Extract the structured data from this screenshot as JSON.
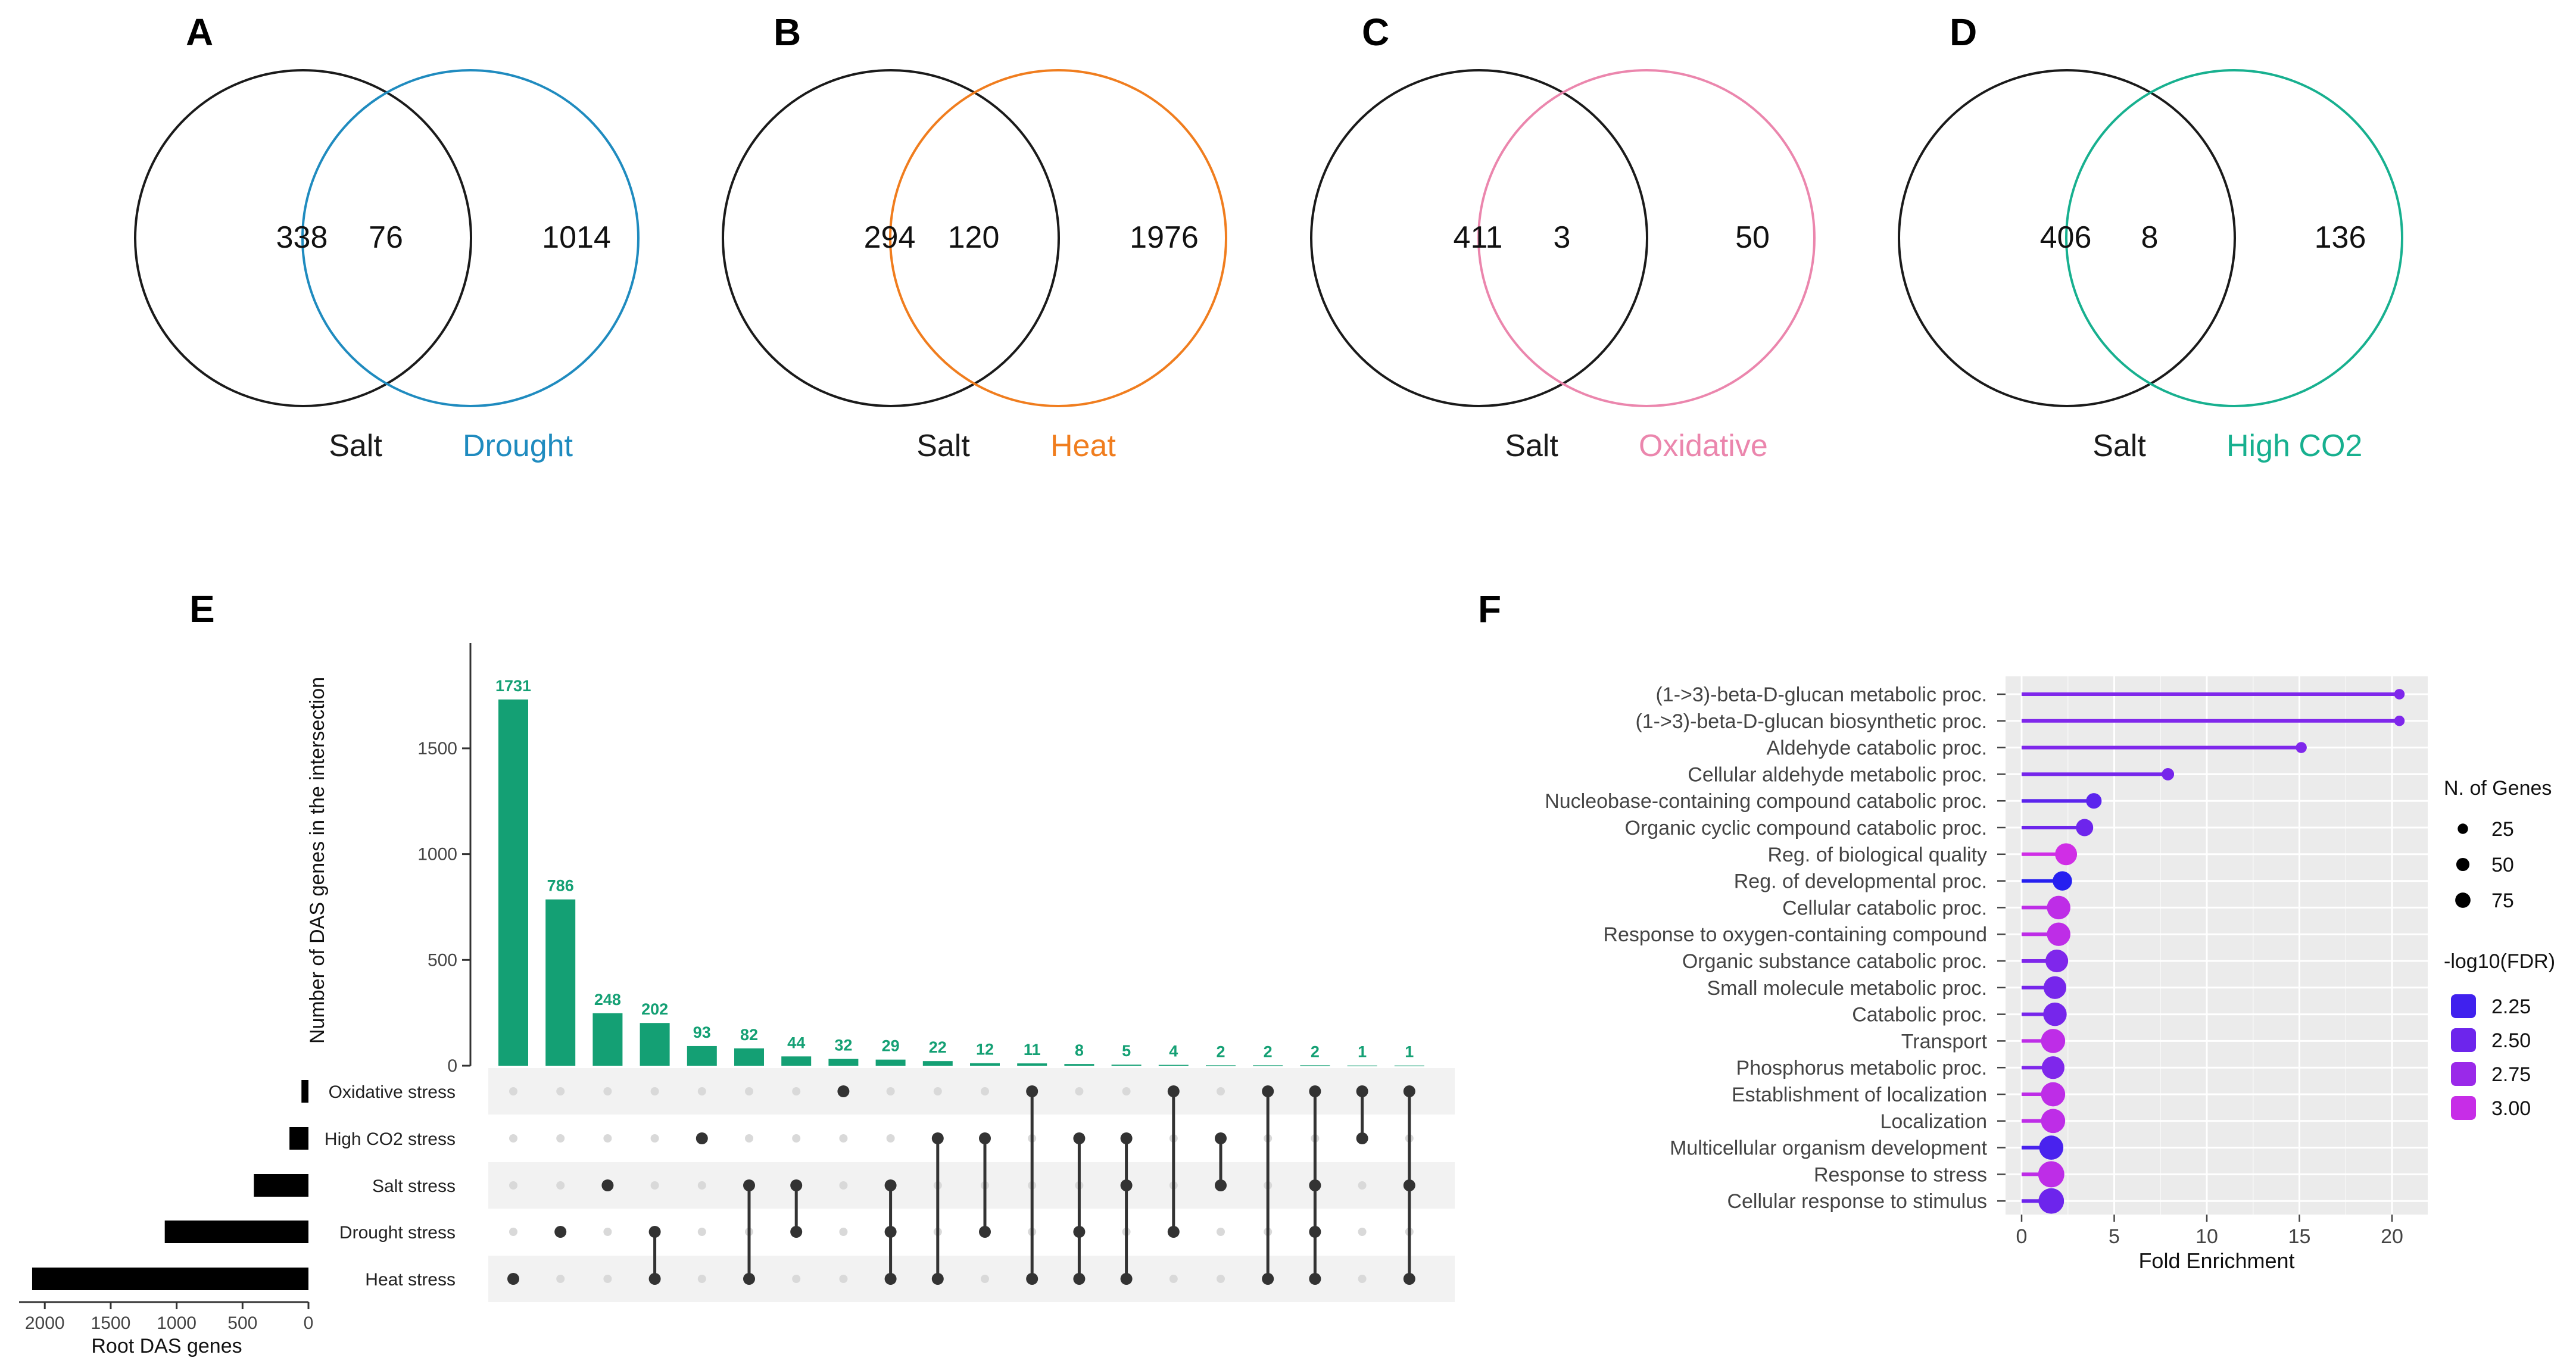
{
  "venns": [
    {
      "panel": "A",
      "left_label": "Salt",
      "right_label": "Drought",
      "left_only": "338",
      "overlap": "76",
      "right_only": "1014",
      "left_color": "#1a1a1a",
      "right_color": "#1f8bbf"
    },
    {
      "panel": "B",
      "left_label": "Salt",
      "right_label": "Heat",
      "left_only": "294",
      "overlap": "120",
      "right_only": "1976",
      "left_color": "#1a1a1a",
      "right_color": "#f07d1e"
    },
    {
      "panel": "C",
      "left_label": "Salt",
      "right_label": "Oxidative",
      "left_only": "411",
      "overlap": "3",
      "right_only": "50",
      "left_color": "#1a1a1a",
      "right_color": "#eb86ad"
    },
    {
      "panel": "D",
      "left_label": "Salt",
      "right_label": "High CO2",
      "left_only": "406",
      "overlap": "8",
      "right_only": "136",
      "left_color": "#1a1a1a",
      "right_color": "#17b08f"
    }
  ],
  "upset": {
    "panel": "E",
    "ylabel": "Number of DAS genes in the intersection",
    "yticks": [
      "0",
      "500",
      "1000",
      "1500"
    ],
    "ymax": 1950,
    "bar_color": "#14a074",
    "label_color": "#14a074",
    "set_bar_color": "#000000",
    "matrix_dot_color": "#333333",
    "empty_dot_color": "#d9d9d9",
    "sets": [
      "Oxidative stress",
      "High CO2 stress",
      "Salt stress",
      "Drought stress",
      "Heat stress"
    ],
    "set_sizes": [
      53,
      144,
      414,
      1090,
      2096
    ],
    "set_axis_label": "Root DAS genes",
    "set_axis_ticks": [
      "2000",
      "1500",
      "1000",
      "500",
      "0"
    ],
    "set_axis_tick_values": [
      2000,
      1500,
      1000,
      500,
      0
    ],
    "set_axis_max": 2150,
    "intersections": [
      {
        "value": 1731,
        "label": "1731",
        "sets": [
          4
        ]
      },
      {
        "value": 786,
        "label": "786",
        "sets": [
          3
        ]
      },
      {
        "value": 248,
        "label": "248",
        "sets": [
          2
        ]
      },
      {
        "value": 202,
        "label": "202",
        "sets": [
          3,
          4
        ]
      },
      {
        "value": 93,
        "label": "93",
        "sets": [
          1
        ]
      },
      {
        "value": 82,
        "label": "82",
        "sets": [
          2,
          4
        ]
      },
      {
        "value": 44,
        "label": "44",
        "sets": [
          2,
          3
        ]
      },
      {
        "value": 32,
        "label": "32",
        "sets": [
          0
        ]
      },
      {
        "value": 29,
        "label": "29",
        "sets": [
          2,
          3,
          4
        ]
      },
      {
        "value": 22,
        "label": "22",
        "sets": [
          1,
          4
        ]
      },
      {
        "value": 12,
        "label": "12",
        "sets": [
          1,
          3
        ]
      },
      {
        "value": 11,
        "label": "11",
        "sets": [
          0,
          4
        ]
      },
      {
        "value": 8,
        "label": "8",
        "sets": [
          1,
          3,
          4
        ]
      },
      {
        "value": 5,
        "label": "5",
        "sets": [
          1,
          2,
          4
        ]
      },
      {
        "value": 4,
        "label": "4",
        "sets": [
          0,
          3
        ]
      },
      {
        "value": 2,
        "label": "2",
        "sets": [
          1,
          2
        ]
      },
      {
        "value": 2,
        "label": "2",
        "sets": [
          0,
          4
        ]
      },
      {
        "value": 2,
        "label": "2",
        "sets": [
          0,
          2,
          3,
          4
        ]
      },
      {
        "value": 1,
        "label": "1",
        "sets": [
          0,
          1
        ]
      },
      {
        "value": 1,
        "label": "1",
        "sets": [
          0,
          2,
          4
        ]
      }
    ]
  },
  "chart_data": {
    "type": "scatter",
    "panel": "F",
    "xlabel": "Fold Enrichment",
    "xlim": [
      0,
      21
    ],
    "xticks": [
      "0",
      "5",
      "10",
      "15",
      "20"
    ],
    "xtick_values": [
      0,
      5,
      10,
      15,
      20
    ],
    "categories": [
      "(1->3)-beta-D-glucan metabolic proc.",
      "(1->3)-beta-D-glucan biosynthetic proc.",
      "Aldehyde catabolic proc.",
      "Cellular aldehyde metabolic proc.",
      "Nucleobase-containing compound catabolic proc.",
      "Organic cyclic compound catabolic proc.",
      "Reg. of biological quality",
      "Reg. of developmental proc.",
      "Cellular catabolic proc.",
      "Response to oxygen-containing compound",
      "Organic substance catabolic proc.",
      "Small molecule metabolic proc.",
      "Catabolic proc.",
      "Transport",
      "Phosphorus metabolic proc.",
      "Establishment of localization",
      "Localization",
      "Multicellular organism development",
      "Response to stress",
      "Cellular response to stimulus"
    ],
    "fold_enrichment": [
      20.4,
      20.4,
      15.1,
      7.9,
      3.9,
      3.4,
      2.4,
      2.2,
      2.0,
      2.0,
      1.9,
      1.8,
      1.8,
      1.7,
      1.7,
      1.7,
      1.7,
      1.6,
      1.6,
      1.6
    ],
    "n_genes": [
      4,
      4,
      5,
      8,
      18,
      25,
      50,
      35,
      60,
      60,
      55,
      55,
      60,
      65,
      55,
      65,
      65,
      65,
      80,
      75
    ],
    "neg_log10_fdr": [
      2.6,
      2.6,
      2.6,
      2.55,
      2.4,
      2.5,
      3.05,
      2.1,
      2.95,
      2.95,
      2.6,
      2.55,
      2.55,
      2.95,
      2.6,
      2.95,
      2.95,
      2.3,
      2.95,
      2.5
    ],
    "legend_size_title": "N. of Genes",
    "legend_size_labels": [
      "25",
      "50",
      "75"
    ],
    "legend_size_values": [
      25,
      50,
      75
    ],
    "legend_color_title": "-log10(FDR)",
    "legend_color_labels": [
      "2.25",
      "2.50",
      "2.75",
      "3.00"
    ],
    "legend_color_values": [
      2.25,
      2.5,
      2.75,
      3.0
    ],
    "color_low": "#1c1ef0",
    "color_high": "#d92fe6",
    "panel_background": "#ebebeb",
    "grid_color": "#ffffff"
  }
}
